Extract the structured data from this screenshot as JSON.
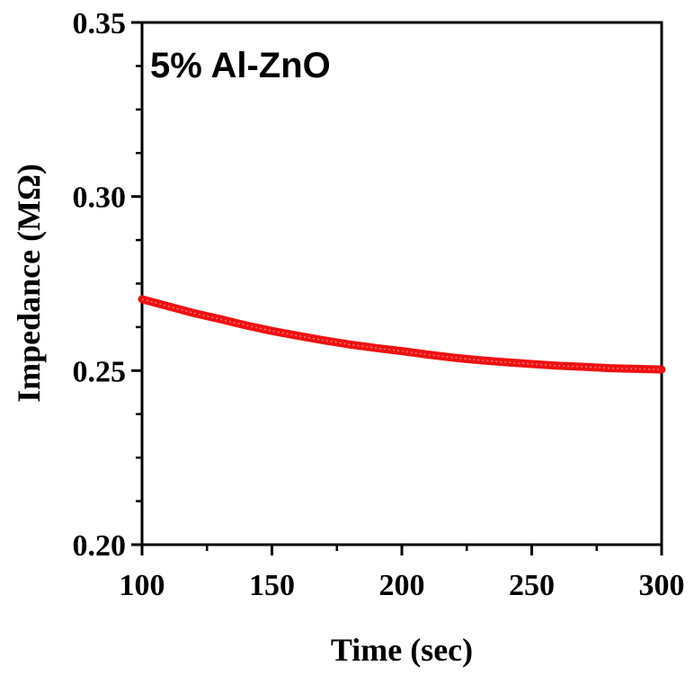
{
  "chart_data": {
    "type": "line",
    "annotation": "5% Al-ZnO",
    "xlabel": "Time (sec)",
    "ylabel": "Impedance (MΩ)",
    "xlim": [
      100,
      300
    ],
    "ylim": [
      0.2,
      0.35
    ],
    "x_ticks": [
      "100",
      "150",
      "200",
      "250",
      "300"
    ],
    "y_ticks": [
      "0.20",
      "0.25",
      "0.30",
      "0.35"
    ],
    "grid": false,
    "series": [
      {
        "color": "#ee1111",
        "x": [
          100,
          110,
          120,
          130,
          140,
          150,
          160,
          170,
          180,
          190,
          200,
          210,
          220,
          230,
          240,
          250,
          260,
          270,
          280,
          290,
          300
        ],
        "y": [
          0.2705,
          0.2685,
          0.2665,
          0.2648,
          0.263,
          0.2614,
          0.26,
          0.2587,
          0.2575,
          0.2565,
          0.2556,
          0.2546,
          0.2537,
          0.253,
          0.2524,
          0.2519,
          0.2514,
          0.2511,
          0.2507,
          0.2505,
          0.2503
        ]
      }
    ]
  }
}
